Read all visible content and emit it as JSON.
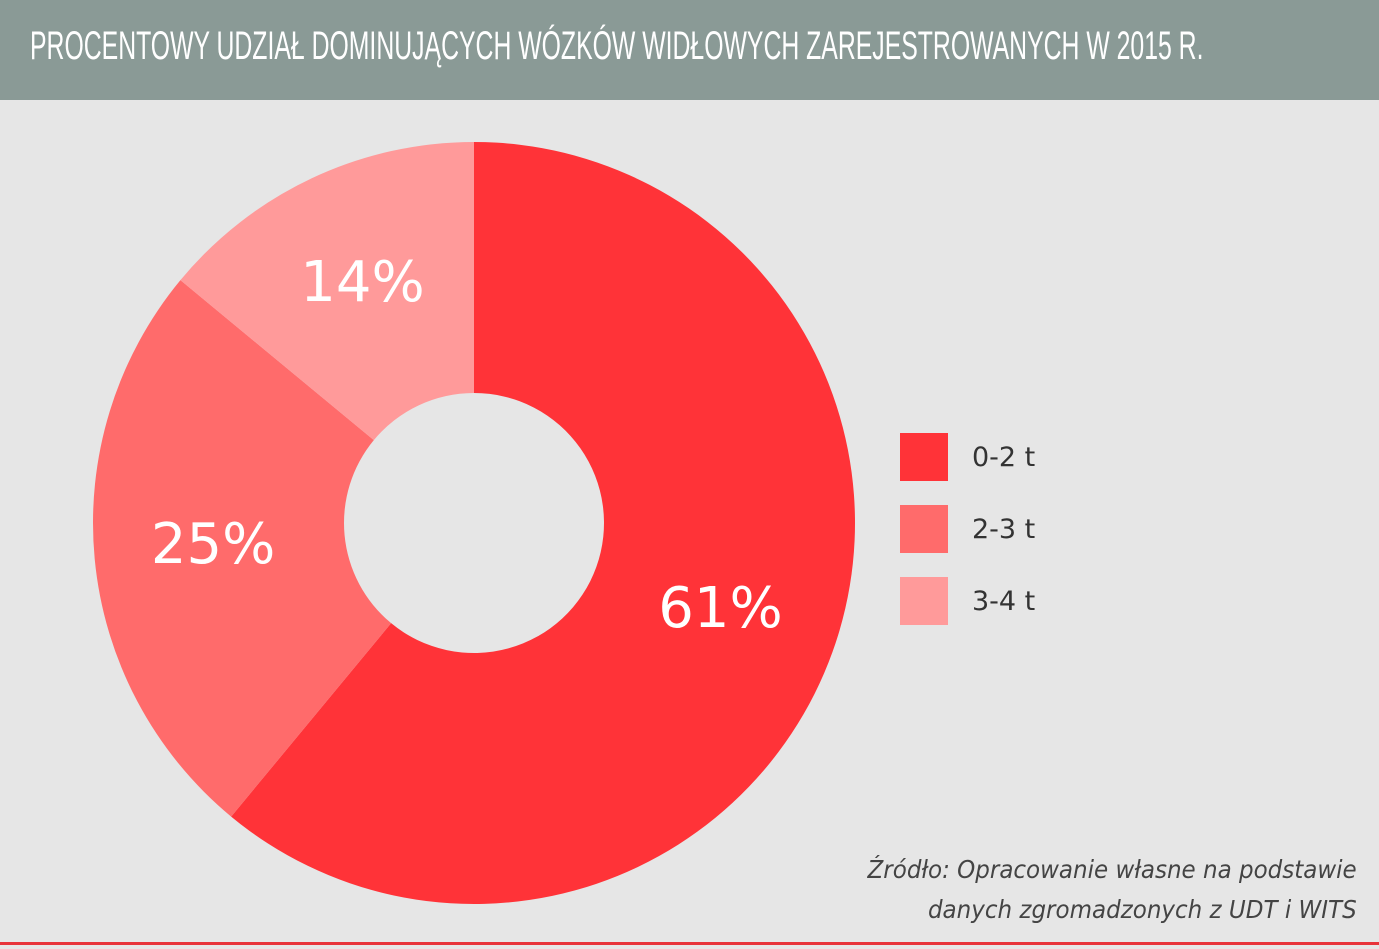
{
  "title": "PROCENTOWY UDZIAŁ DOMINUJĄCYCH WÓZKÓW WIDŁOWYCH ZAREJESTROWANYCH W 2015 R.",
  "source_line1": "Źródło: Opracowanie własne na podstawie",
  "source_line2": "danych zgromadzonych z UDT i WITS",
  "colors": {
    "header_bg": "#8a9a96",
    "page_bg": "#e6e6e6",
    "accent_rule": "#e8333a"
  },
  "chart_data": {
    "type": "pie",
    "style": "donut",
    "categories": [
      "0-2 t",
      "2-3 t",
      "3-4 t"
    ],
    "values": [
      61,
      25,
      14
    ],
    "data_labels": [
      "61%",
      "25%",
      "14%"
    ],
    "colors": [
      "#ff3338",
      "#ff6b6b",
      "#ff9a9a"
    ],
    "legend_position": "right",
    "start_angle": "12 o'clock",
    "direction": "clockwise"
  }
}
